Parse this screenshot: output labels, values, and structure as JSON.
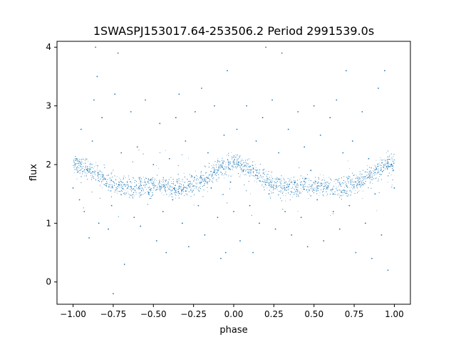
{
  "chart_data": {
    "type": "scatter",
    "title": "1SWASPJ153017.64-253506.2 Period 2991539.0s",
    "xlabel": "phase",
    "ylabel": "flux",
    "xlim": [
      -1.1,
      1.1
    ],
    "ylim": [
      -0.38,
      4.1
    ],
    "grid": false,
    "legend": "none",
    "x_ticks": [
      -1.0,
      -0.75,
      -0.5,
      -0.25,
      0.0,
      0.25,
      0.5,
      0.75,
      1.0
    ],
    "x_tick_labels": [
      "−1.00",
      "−0.75",
      "−0.50",
      "−0.25",
      "0.00",
      "0.25",
      "0.50",
      "0.75",
      "1.00"
    ],
    "y_ticks": [
      0,
      1,
      2,
      3,
      4
    ],
    "y_tick_labels": [
      "0",
      "1",
      "2",
      "3",
      "4"
    ],
    "series": [
      {
        "marker_color": "#1f77b4",
        "phase_range": [
          -1.0,
          1.0
        ],
        "flux_core_range": [
          1.1,
          2.4
        ],
        "flux_median": 1.75,
        "flux_extremes": [
          -0.2,
          4.0
        ],
        "points": [
          [
            -1.0,
            1.6
          ],
          [
            -0.98,
            2.1
          ],
          [
            -0.96,
            1.4
          ],
          [
            -0.95,
            2.6
          ],
          [
            -0.93,
            1.2
          ],
          [
            -0.91,
            1.9
          ],
          [
            -0.9,
            0.75
          ],
          [
            -0.88,
            2.4
          ],
          [
            -0.87,
            3.1
          ],
          [
            -0.86,
            4.0
          ],
          [
            -0.85,
            3.5
          ],
          [
            -0.84,
            1.0
          ],
          [
            -0.82,
            2.8
          ],
          [
            -0.8,
            1.75
          ],
          [
            -0.78,
            0.9
          ],
          [
            -0.76,
            1.3
          ],
          [
            -0.75,
            -0.2
          ],
          [
            -0.74,
            3.2
          ],
          [
            -0.72,
            3.9
          ],
          [
            -0.7,
            2.2
          ],
          [
            -0.68,
            0.3
          ],
          [
            -0.66,
            1.6
          ],
          [
            -0.64,
            2.9
          ],
          [
            -0.62,
            1.1
          ],
          [
            -0.6,
            2.3
          ],
          [
            -0.58,
            0.95
          ],
          [
            -0.55,
            3.1
          ],
          [
            -0.53,
            1.5
          ],
          [
            -0.5,
            2.0
          ],
          [
            -0.48,
            0.7
          ],
          [
            -0.46,
            2.7
          ],
          [
            -0.44,
            1.2
          ],
          [
            -0.42,
            0.5
          ],
          [
            -0.4,
            2.1
          ],
          [
            -0.38,
            1.4
          ],
          [
            -0.36,
            2.8
          ],
          [
            -0.34,
            3.2
          ],
          [
            -0.32,
            1.0
          ],
          [
            -0.3,
            2.4
          ],
          [
            -0.28,
            0.6
          ],
          [
            -0.26,
            1.8
          ],
          [
            -0.24,
            2.9
          ],
          [
            -0.22,
            1.3
          ],
          [
            -0.2,
            3.3
          ],
          [
            -0.18,
            0.8
          ],
          [
            -0.16,
            2.2
          ],
          [
            -0.14,
            1.6
          ],
          [
            -0.12,
            3.0
          ],
          [
            -0.1,
            1.1
          ],
          [
            -0.08,
            0.4
          ],
          [
            -0.06,
            2.5
          ],
          [
            -0.05,
            0.5
          ],
          [
            -0.04,
            3.6
          ],
          [
            -0.02,
            1.7
          ],
          [
            0.0,
            1.2
          ],
          [
            0.02,
            2.6
          ],
          [
            0.04,
            0.7
          ],
          [
            0.06,
            1.9
          ],
          [
            0.08,
            3.0
          ],
          [
            0.1,
            1.3
          ],
          [
            0.12,
            0.5
          ],
          [
            0.14,
            2.4
          ],
          [
            0.16,
            1.0
          ],
          [
            0.18,
            2.8
          ],
          [
            0.2,
            4.0
          ],
          [
            0.22,
            1.5
          ],
          [
            0.24,
            3.1
          ],
          [
            0.26,
            0.9
          ],
          [
            0.28,
            2.2
          ],
          [
            0.3,
            3.9
          ],
          [
            0.32,
            1.2
          ],
          [
            0.34,
            2.6
          ],
          [
            0.36,
            0.8
          ],
          [
            0.38,
            1.7
          ],
          [
            0.4,
            2.9
          ],
          [
            0.42,
            1.1
          ],
          [
            0.44,
            2.3
          ],
          [
            0.46,
            0.6
          ],
          [
            0.48,
            1.9
          ],
          [
            0.5,
            3.0
          ],
          [
            0.52,
            1.4
          ],
          [
            0.54,
            2.5
          ],
          [
            0.56,
            0.7
          ],
          [
            0.58,
            1.6
          ],
          [
            0.6,
            2.8
          ],
          [
            0.62,
            1.2
          ],
          [
            0.64,
            3.1
          ],
          [
            0.66,
            0.9
          ],
          [
            0.68,
            2.2
          ],
          [
            0.7,
            3.6
          ],
          [
            0.72,
            1.3
          ],
          [
            0.74,
            2.4
          ],
          [
            0.76,
            0.5
          ],
          [
            0.78,
            1.7
          ],
          [
            0.8,
            2.9
          ],
          [
            0.82,
            1.0
          ],
          [
            0.84,
            2.1
          ],
          [
            0.86,
            0.4
          ],
          [
            0.88,
            1.5
          ],
          [
            0.9,
            3.3
          ],
          [
            0.92,
            0.8
          ],
          [
            0.94,
            3.6
          ],
          [
            0.96,
            0.2
          ],
          [
            0.98,
            2.0
          ],
          [
            1.0,
            1.6
          ]
        ]
      }
    ]
  }
}
